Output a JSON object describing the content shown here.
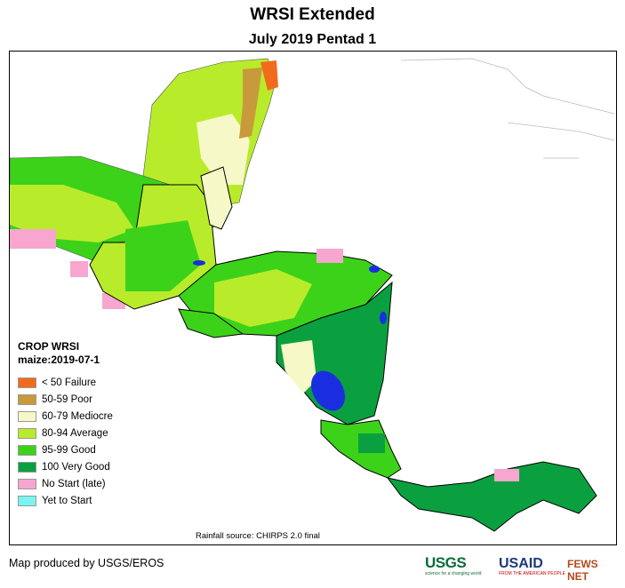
{
  "header": {
    "title": "WRSI Extended",
    "subtitle": "July 2019 Pentad 1"
  },
  "legend": {
    "title": "CROP WRSI",
    "subtitle": "maize:2019-07-1",
    "items": [
      {
        "label": "< 50  Failure",
        "color": "#f26b1d"
      },
      {
        "label": "50-59 Poor",
        "color": "#c99a3c"
      },
      {
        "label": "60-79 Mediocre",
        "color": "#f6f8c8"
      },
      {
        "label": "80-94 Average",
        "color": "#b8ec2a"
      },
      {
        "label": "95-99 Good",
        "color": "#3cd21a"
      },
      {
        "label": "100 Very Good",
        "color": "#0aa040"
      },
      {
        "label": "No Start (late)",
        "color": "#f7a6cf"
      },
      {
        "label": "Yet to Start",
        "color": "#7af4ee"
      }
    ]
  },
  "map": {
    "water_color": "#1a2ee0",
    "border_color": "#000000"
  },
  "footer": {
    "source": "Rainfall source: CHIRPS 2.0 final",
    "credit": "Map produced by USGS/EROS",
    "logos": {
      "usgs": "USGS",
      "usgs_tagline": "science for a changing world",
      "usaid": "USAID",
      "usaid_tagline": "FROM THE AMERICAN PEOPLE",
      "fews": "FEWS NET"
    }
  }
}
